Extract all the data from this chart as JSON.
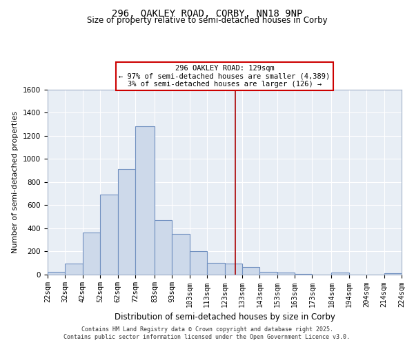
{
  "title": "296, OAKLEY ROAD, CORBY, NN18 9NP",
  "subtitle": "Size of property relative to semi-detached houses in Corby",
  "xlabel": "Distribution of semi-detached houses by size in Corby",
  "ylabel": "Number of semi-detached properties",
  "annotation_title": "296 OAKLEY ROAD: 129sqm",
  "annotation_line1": "← 97% of semi-detached houses are smaller (4,389)",
  "annotation_line2": "3% of semi-detached houses are larger (126) →",
  "footer1": "Contains HM Land Registry data © Crown copyright and database right 2025.",
  "footer2": "Contains public sector information licensed under the Open Government Licence v3.0.",
  "property_size": 129,
  "bin_edges": [
    22,
    32,
    42,
    52,
    62,
    72,
    83,
    93,
    103,
    113,
    123,
    133,
    143,
    153,
    163,
    173,
    184,
    194,
    204,
    214,
    224
  ],
  "bin_labels": [
    "22sqm",
    "32sqm",
    "42sqm",
    "52sqm",
    "62sqm",
    "72sqm",
    "83sqm",
    "93sqm",
    "103sqm",
    "113sqm",
    "123sqm",
    "133sqm",
    "143sqm",
    "153sqm",
    "163sqm",
    "173sqm",
    "184sqm",
    "194sqm",
    "204sqm",
    "214sqm",
    "224sqm"
  ],
  "counts": [
    20,
    90,
    360,
    690,
    910,
    1280,
    470,
    350,
    200,
    100,
    90,
    65,
    20,
    15,
    5,
    0,
    15,
    0,
    0,
    10
  ],
  "bar_facecolor": "#cdd9ea",
  "bar_edgecolor": "#7090c0",
  "vline_color": "#aa0000",
  "annotation_box_facecolor": "white",
  "annotation_box_edgecolor": "#cc0000",
  "bg_color": "#e8eef5",
  "plot_bg_color": "#e8eef5",
  "ylim": [
    0,
    1600
  ],
  "yticks": [
    0,
    200,
    400,
    600,
    800,
    1000,
    1200,
    1400,
    1600
  ],
  "title_fontsize": 10,
  "subtitle_fontsize": 8.5,
  "ylabel_fontsize": 8,
  "xlabel_fontsize": 8.5,
  "tick_fontsize": 7.5,
  "footer_fontsize": 6.0
}
